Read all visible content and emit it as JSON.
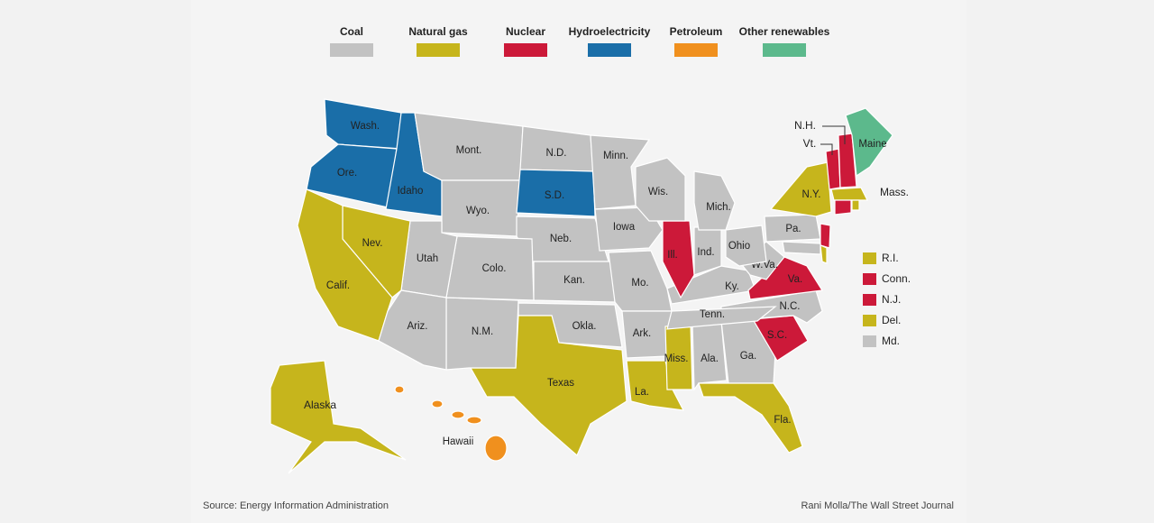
{
  "legend": [
    {
      "label": "Coal",
      "color": "#c2c2c2"
    },
    {
      "label": "Natural gas",
      "color": "#c6b51c"
    },
    {
      "label": "Nuclear",
      "color": "#cc1939"
    },
    {
      "label": "Hydroelectricity",
      "color": "#1a6ea8"
    },
    {
      "label": "Petroleum",
      "color": "#f0901e"
    },
    {
      "label": "Other renewables",
      "color": "#5cb98c"
    }
  ],
  "states": [
    {
      "label": "Wash.",
      "fuel": "Hydroelectricity"
    },
    {
      "label": "Ore.",
      "fuel": "Hydroelectricity"
    },
    {
      "label": "Idaho",
      "fuel": "Hydroelectricity"
    },
    {
      "label": "Mont.",
      "fuel": "Coal"
    },
    {
      "label": "Wyo.",
      "fuel": "Coal"
    },
    {
      "label": "N.D.",
      "fuel": "Coal"
    },
    {
      "label": "S.D.",
      "fuel": "Hydroelectricity"
    },
    {
      "label": "Neb.",
      "fuel": "Coal"
    },
    {
      "label": "Kan.",
      "fuel": "Coal"
    },
    {
      "label": "Okla.",
      "fuel": "Coal"
    },
    {
      "label": "Texas",
      "fuel": "Natural gas"
    },
    {
      "label": "N.M.",
      "fuel": "Coal"
    },
    {
      "label": "Colo.",
      "fuel": "Coal"
    },
    {
      "label": "Utah",
      "fuel": "Coal"
    },
    {
      "label": "Nev.",
      "fuel": "Natural gas"
    },
    {
      "label": "Calif.",
      "fuel": "Natural gas"
    },
    {
      "label": "Ariz.",
      "fuel": "Coal"
    },
    {
      "label": "Minn.",
      "fuel": "Coal"
    },
    {
      "label": "Iowa",
      "fuel": "Coal"
    },
    {
      "label": "Mo.",
      "fuel": "Coal"
    },
    {
      "label": "Ark.",
      "fuel": "Coal"
    },
    {
      "label": "La.",
      "fuel": "Natural gas"
    },
    {
      "label": "Miss.",
      "fuel": "Natural gas"
    },
    {
      "label": "Ala.",
      "fuel": "Coal"
    },
    {
      "label": "Ga.",
      "fuel": "Coal"
    },
    {
      "label": "Fla.",
      "fuel": "Natural gas"
    },
    {
      "label": "S.C.",
      "fuel": "Nuclear"
    },
    {
      "label": "N.C.",
      "fuel": "Coal"
    },
    {
      "label": "Tenn.",
      "fuel": "Coal"
    },
    {
      "label": "Ky.",
      "fuel": "Coal"
    },
    {
      "label": "Va.",
      "fuel": "Nuclear"
    },
    {
      "label": "W.Va.",
      "fuel": "Coal"
    },
    {
      "label": "Ohio",
      "fuel": "Coal"
    },
    {
      "label": "Ind.",
      "fuel": "Coal"
    },
    {
      "label": "Ill.",
      "fuel": "Nuclear"
    },
    {
      "label": "Wis.",
      "fuel": "Coal"
    },
    {
      "label": "Mich.",
      "fuel": "Coal"
    },
    {
      "label": "Pa.",
      "fuel": "Coal"
    },
    {
      "label": "N.Y.",
      "fuel": "Natural gas"
    },
    {
      "label": "Vt.",
      "fuel": "Nuclear"
    },
    {
      "label": "N.H.",
      "fuel": "Nuclear"
    },
    {
      "label": "Maine",
      "fuel": "Other renewables"
    },
    {
      "label": "Mass.",
      "fuel": "Natural gas"
    },
    {
      "label": "Alaska",
      "fuel": "Natural gas"
    },
    {
      "label": "Hawaii",
      "fuel": "Petroleum"
    }
  ],
  "small_states": [
    {
      "label": "R.I.",
      "fuel": "Natural gas"
    },
    {
      "label": "Conn.",
      "fuel": "Nuclear"
    },
    {
      "label": "N.J.",
      "fuel": "Nuclear"
    },
    {
      "label": "Del.",
      "fuel": "Natural gas"
    },
    {
      "label": "Md.",
      "fuel": "Coal"
    }
  ],
  "source": "Source: Energy Information Administration",
  "credit": "Rani Molla/The Wall Street Journal"
}
